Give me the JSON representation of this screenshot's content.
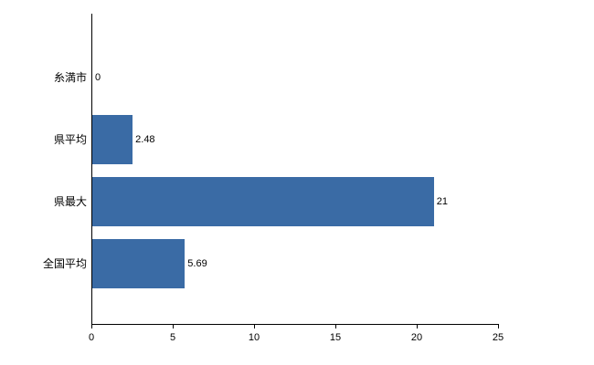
{
  "chart_data": {
    "type": "bar",
    "orientation": "horizontal",
    "title": "",
    "xlabel": "",
    "ylabel": "",
    "categories": [
      "糸満市",
      "県平均",
      "県最大",
      "全国平均"
    ],
    "values": [
      0,
      2.48,
      21,
      5.69
    ],
    "value_labels": [
      "0",
      "2.48",
      "21",
      "5.69"
    ],
    "xlim": [
      0,
      25
    ],
    "xticks": [
      0,
      5,
      10,
      15,
      20,
      25
    ],
    "xtick_labels": [
      "0",
      "5",
      "10",
      "15",
      "20",
      "25"
    ],
    "grid": false,
    "legend": "none",
    "bar_color": "#3a6ba5",
    "axis_color": "#000000",
    "background_color": "#ffffff"
  }
}
